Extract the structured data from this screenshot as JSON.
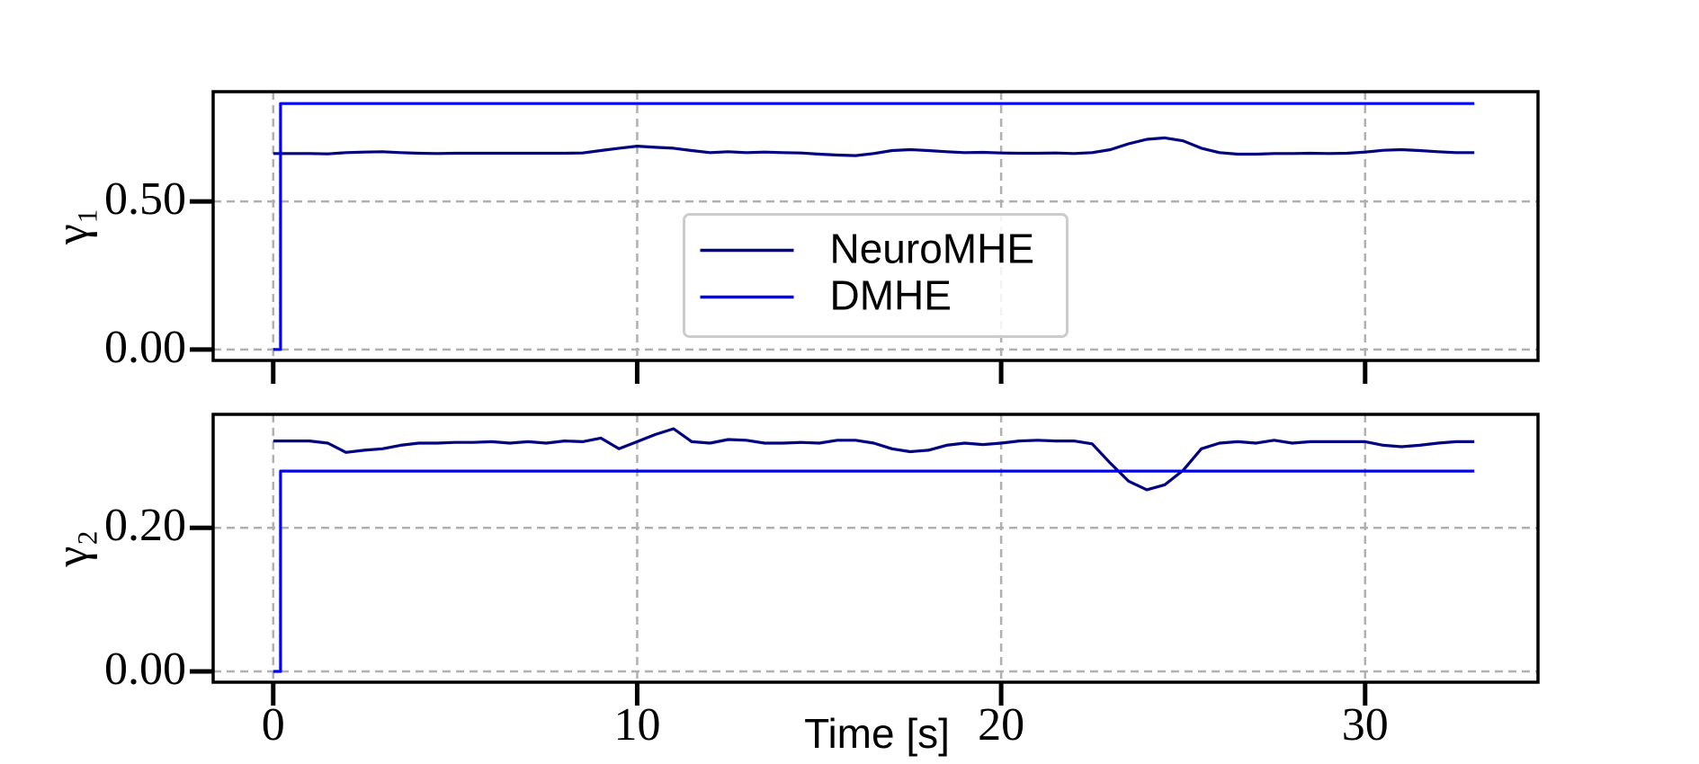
{
  "chart_data": [
    {
      "type": "line",
      "ylabel": "γ₁",
      "legend": "center",
      "grid": true,
      "xlim": [
        -1.65,
        34.75
      ],
      "xticks": [
        0,
        10,
        20,
        30
      ],
      "ylim": [
        -0.037,
        0.871
      ],
      "yticks": [
        {
          "value": 0,
          "label": "0.00"
        },
        {
          "value": 0.5,
          "label": "0.50"
        }
      ],
      "series": [
        {
          "name": "NeuroMHE",
          "color": "#000080",
          "x": [
            0,
            0.5,
            1,
            1.5,
            2,
            2.5,
            3,
            3.5,
            4,
            4.5,
            5,
            5.5,
            6,
            6.5,
            7,
            7.5,
            8,
            8.5,
            9,
            9.5,
            10,
            10.5,
            11,
            11.5,
            12,
            12.5,
            13,
            13.5,
            14,
            14.5,
            15,
            15.5,
            16,
            16.5,
            17,
            17.5,
            18,
            18.5,
            19,
            19.5,
            20,
            20.5,
            21,
            21.5,
            22,
            22.5,
            23,
            23.5,
            24,
            24.5,
            25,
            25.5,
            26,
            26.5,
            27,
            27.5,
            28,
            28.5,
            29,
            29.5,
            30,
            30.5,
            31,
            31.5,
            32,
            32.5,
            33
          ],
          "values": [
            0.662,
            0.662,
            0.662,
            0.661,
            0.665,
            0.667,
            0.668,
            0.665,
            0.663,
            0.662,
            0.663,
            0.663,
            0.663,
            0.663,
            0.663,
            0.663,
            0.663,
            0.664,
            0.672,
            0.68,
            0.687,
            0.683,
            0.68,
            0.672,
            0.665,
            0.668,
            0.665,
            0.667,
            0.665,
            0.664,
            0.66,
            0.657,
            0.655,
            0.662,
            0.672,
            0.675,
            0.672,
            0.668,
            0.665,
            0.666,
            0.664,
            0.663,
            0.663,
            0.664,
            0.662,
            0.665,
            0.675,
            0.695,
            0.71,
            0.715,
            0.705,
            0.68,
            0.665,
            0.66,
            0.66,
            0.662,
            0.662,
            0.663,
            0.662,
            0.663,
            0.667,
            0.673,
            0.675,
            0.672,
            0.668,
            0.665,
            0.665
          ]
        },
        {
          "name": "DMHE",
          "color": "#0000ff",
          "x": [
            0,
            0.2,
            0.2,
            33
          ],
          "values": [
            0,
            0,
            0.831,
            0.831
          ]
        }
      ]
    },
    {
      "type": "line",
      "ylabel": "γ₂",
      "xlabel": "Time [s]",
      "grid": true,
      "xlim": [
        -1.65,
        34.75
      ],
      "xticks": [
        0,
        10,
        20,
        30
      ],
      "ylim": [
        -0.015,
        0.358
      ],
      "yticks": [
        {
          "value": 0,
          "label": "0.00"
        },
        {
          "value": 0.2,
          "label": "0.20"
        }
      ],
      "series": [
        {
          "name": "NeuroMHE",
          "color": "#000080",
          "x": [
            0,
            0.5,
            1,
            1.5,
            2,
            2.5,
            3,
            3.5,
            4,
            4.5,
            5,
            5.5,
            6,
            6.5,
            7,
            7.5,
            8,
            8.5,
            9,
            9.5,
            10,
            10.5,
            11,
            11.5,
            12,
            12.5,
            13,
            13.5,
            14,
            14.5,
            15,
            15.5,
            16,
            16.5,
            17,
            17.5,
            18,
            18.5,
            19,
            19.5,
            20,
            20.5,
            21,
            21.5,
            22,
            22.5,
            23,
            23.5,
            24,
            24.5,
            25,
            25.5,
            26,
            26.5,
            27,
            27.5,
            28,
            28.5,
            29,
            29.5,
            30,
            30.5,
            31,
            31.5,
            32,
            32.5,
            33
          ],
          "values": [
            0.321,
            0.321,
            0.321,
            0.318,
            0.305,
            0.308,
            0.31,
            0.315,
            0.318,
            0.318,
            0.319,
            0.319,
            0.32,
            0.318,
            0.32,
            0.318,
            0.321,
            0.32,
            0.325,
            0.31,
            0.32,
            0.33,
            0.338,
            0.32,
            0.318,
            0.323,
            0.322,
            0.318,
            0.318,
            0.319,
            0.318,
            0.322,
            0.322,
            0.318,
            0.31,
            0.306,
            0.308,
            0.315,
            0.318,
            0.316,
            0.318,
            0.321,
            0.322,
            0.321,
            0.321,
            0.317,
            0.29,
            0.265,
            0.253,
            0.26,
            0.28,
            0.31,
            0.318,
            0.32,
            0.318,
            0.322,
            0.318,
            0.32,
            0.32,
            0.32,
            0.32,
            0.315,
            0.313,
            0.315,
            0.318,
            0.32,
            0.32
          ]
        },
        {
          "name": "DMHE",
          "color": "#0000ff",
          "x": [
            0,
            0.2,
            0.2,
            33
          ],
          "values": [
            0,
            0,
            0.279,
            0.279
          ]
        }
      ]
    }
  ]
}
